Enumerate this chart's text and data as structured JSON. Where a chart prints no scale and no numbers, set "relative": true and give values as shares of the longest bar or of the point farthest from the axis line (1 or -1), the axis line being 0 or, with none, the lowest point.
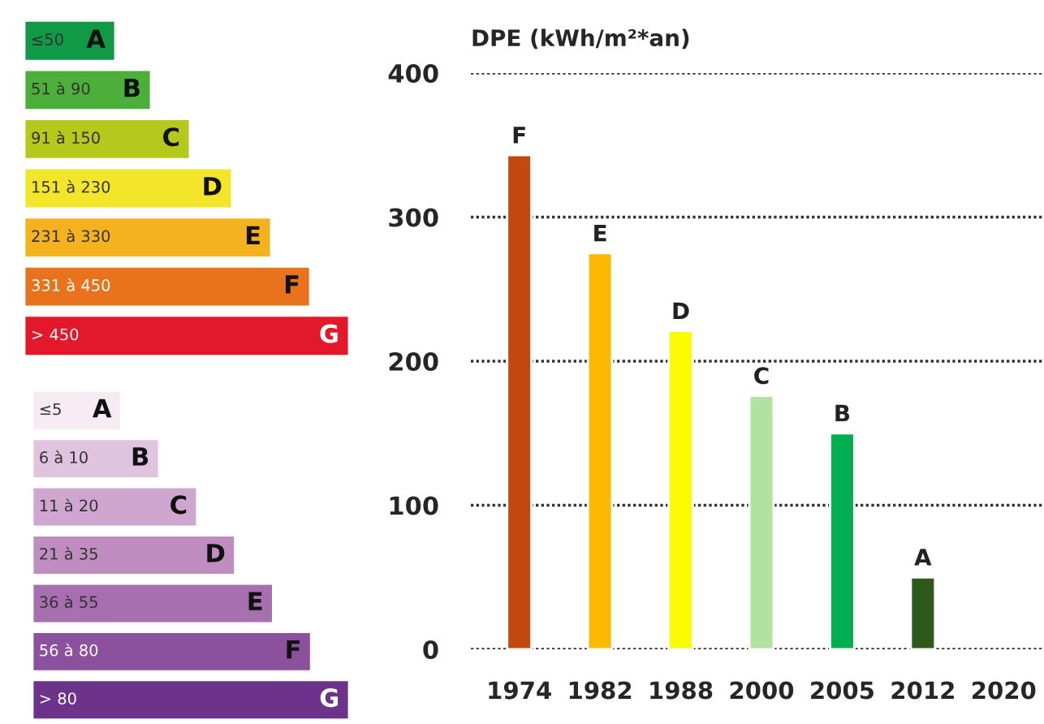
{
  "chart_data": [
    {
      "type": "bar",
      "orientation": "horizontal",
      "relative": true,
      "annotations": [
        "≤50",
        "51 à 90",
        "91 à 150",
        "151 à 230",
        "231 à 330",
        "331 à 450",
        "> 450"
      ],
      "categories": [
        "A",
        "B",
        "C",
        "D",
        "E",
        "F",
        "G"
      ],
      "values": [
        0.28,
        0.39,
        0.51,
        0.64,
        0.76,
        0.88,
        1
      ],
      "colors": [
        "#109a48",
        "#4caf3a",
        "#b5c91c",
        "#f2e52a",
        "#f4b21f",
        "#e8731c",
        "#e3192b"
      ]
    },
    {
      "type": "bar",
      "orientation": "horizontal",
      "relative": true,
      "annotations": [
        "≤5",
        "6 à 10",
        "11 à 20",
        "21 à 35",
        "36 à 55",
        "56 à 80",
        "> 80"
      ],
      "categories": [
        "A",
        "B",
        "C",
        "D",
        "E",
        "F",
        "G"
      ],
      "values": [
        0.28,
        0.4,
        0.52,
        0.64,
        0.76,
        0.88,
        1
      ],
      "colors": [
        "#f6eaf3",
        "#e0c3df",
        "#cfa6cf",
        "#bf8dc0",
        "#a86fb0",
        "#8c519c",
        "#6d3289"
      ]
    },
    {
      "type": "bar",
      "title": "DPE (kWh/m²*an)",
      "categories": [
        "1974",
        "1982",
        "1988",
        "2000",
        "2005",
        "2012",
        "2020"
      ],
      "values": [
        343,
        275,
        221,
        176,
        150,
        50,
        null
      ],
      "value_labels": [
        "F",
        "E",
        "D",
        "C",
        "B",
        "A",
        null
      ],
      "colors": [
        "#c0490f",
        "#fbba00",
        "#fafa00",
        "#b2e2a0",
        "#00b050",
        "#2d5a1b",
        "#888888"
      ],
      "ylim": [
        0,
        400
      ],
      "yticks": [
        0,
        100,
        200,
        300,
        400
      ],
      "grid": "y"
    }
  ]
}
